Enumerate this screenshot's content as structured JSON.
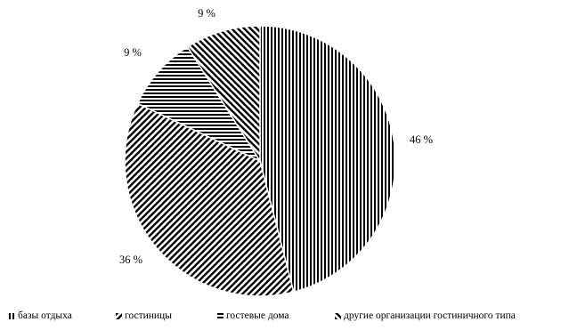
{
  "chart_data": {
    "type": "pie",
    "categories": [
      "базы отдыха",
      "гостиницы",
      "гостевые дома",
      "другие организации  гостиничного  типа"
    ],
    "values": [
      46,
      36,
      9,
      9
    ],
    "data_labels": [
      "46 %",
      "36 %",
      "9 %",
      "9 %"
    ],
    "patterns": [
      "vertical-stripes",
      "diagonal-stripes",
      "horizontal-stripes",
      "diagonal-stripes-reverse"
    ],
    "legend_position": "bottom",
    "title": ""
  },
  "colors": {
    "stroke": "#000000",
    "background": "#ffffff"
  }
}
